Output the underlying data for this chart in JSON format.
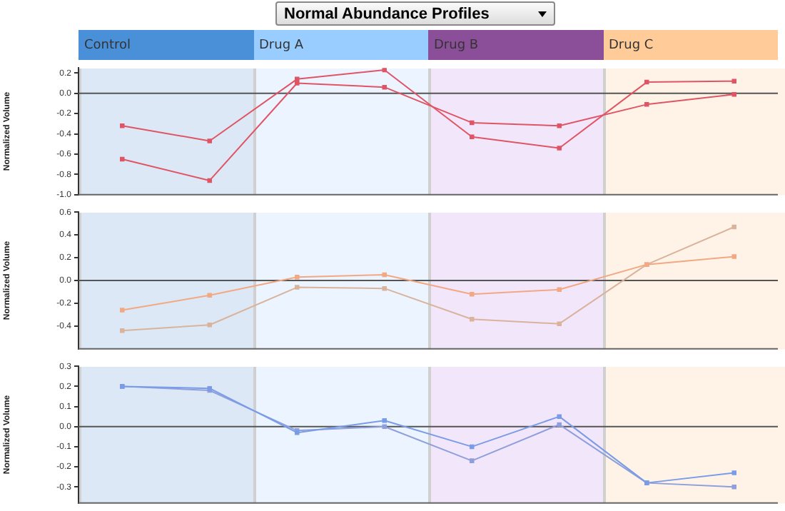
{
  "chart_data": [
    {
      "type": "line",
      "title": "Normal Abundance Profiles",
      "ylabel": "Normalized Volume",
      "categories": [
        null,
        null,
        null,
        null,
        null,
        null,
        null,
        null
      ],
      "ylim": [
        -1.0,
        0.25
      ],
      "yticks": [
        {
          "value": -1.0,
          "label": "-1.0"
        },
        {
          "value": -0.8,
          "label": "-0.8"
        },
        {
          "value": -0.6,
          "label": "-0.6"
        },
        {
          "value": -0.4,
          "label": "-0.4"
        },
        {
          "value": -0.2,
          "label": "-0.2"
        },
        {
          "value": 0,
          "label": "0.0"
        },
        {
          "value": 0.2,
          "label": "0.2"
        }
      ],
      "tick_labels": "y",
      "grid": false,
      "marker": "square",
      "line_style": "solid",
      "annotations": [
        "Control",
        "Drug A",
        "Drug B",
        "Drug C"
      ],
      "ref_lines": [
        {
          "axis": "y",
          "value": 0,
          "color": "#555555"
        }
      ],
      "series": [
        {
          "color": "#e05565",
          "values": [
            -0.32,
            -0.47,
            0.14,
            0.23,
            -0.43,
            -0.54,
            0.11,
            0.12
          ]
        },
        {
          "color": "#e05565",
          "values": [
            -0.65,
            -0.86,
            0.1,
            0.06,
            -0.29,
            -0.32,
            -0.11,
            -0.01
          ]
        }
      ]
    },
    {
      "type": "line",
      "ylabel": "Normalized Volume",
      "categories": [
        null,
        null,
        null,
        null,
        null,
        null,
        null,
        null
      ],
      "ylim": [
        -0.6,
        0.6
      ],
      "yticks": [
        {
          "value": -0.4,
          "label": "-0.4"
        },
        {
          "value": -0.2,
          "label": "-0.2"
        },
        {
          "value": 0,
          "label": "0.0"
        },
        {
          "value": 0.2,
          "label": "0.2"
        },
        {
          "value": 0.4,
          "label": "0.4"
        },
        {
          "value": 0.6,
          "label": "0.6"
        }
      ],
      "tick_labels": "y",
      "grid": false,
      "marker": "square",
      "line_style": "solid",
      "ref_lines": [
        {
          "axis": "y",
          "value": 0,
          "color": "#555555"
        }
      ],
      "series": [
        {
          "color": "#f2a882",
          "values": [
            -0.26,
            -0.13,
            0.03,
            0.05,
            -0.12,
            -0.08,
            0.14,
            0.21
          ]
        },
        {
          "color": "#d9b39c",
          "values": [
            -0.44,
            -0.39,
            -0.06,
            -0.07,
            -0.34,
            -0.38,
            0.14,
            0.47
          ]
        }
      ]
    },
    {
      "type": "line",
      "ylabel": "Normalized Volume",
      "categories": [
        null,
        null,
        null,
        null,
        null,
        null,
        null,
        null
      ],
      "ylim": [
        -0.38,
        0.3
      ],
      "yticks": [
        {
          "value": -0.3,
          "label": "-0.3"
        },
        {
          "value": -0.2,
          "label": "-0.2"
        },
        {
          "value": -0.1,
          "label": "-0.1"
        },
        {
          "value": 0,
          "label": "0.0"
        },
        {
          "value": 0.1,
          "label": "0.1"
        },
        {
          "value": 0.2,
          "label": "0.2"
        },
        {
          "value": 0.3,
          "label": "0.3"
        }
      ],
      "tick_labels": "y",
      "grid": false,
      "marker": "square",
      "line_style": "solid",
      "ref_lines": [
        {
          "axis": "y",
          "value": 0,
          "color": "#555555"
        }
      ],
      "series": [
        {
          "color": "#7a9ce8",
          "values": [
            0.2,
            0.19,
            -0.03,
            0.03,
            -0.1,
            0.05,
            -0.28,
            -0.23
          ]
        },
        {
          "color": "#8f9fdc",
          "values": [
            0.2,
            0.18,
            -0.02,
            0.0,
            -0.17,
            0.01,
            -0.28,
            -0.3
          ]
        }
      ]
    }
  ]
}
